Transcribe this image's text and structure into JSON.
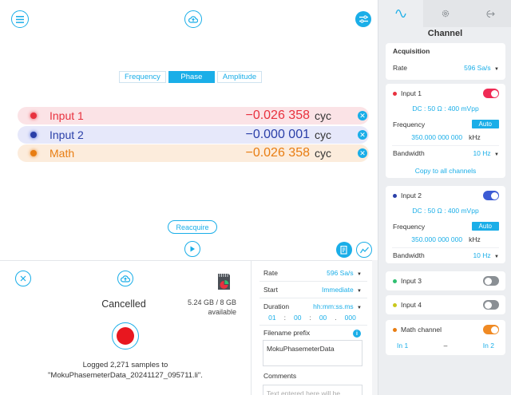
{
  "main": {
    "tabs": [
      {
        "label": "Frequency",
        "active": false
      },
      {
        "label": "Phase",
        "active": true
      },
      {
        "label": "Amplitude",
        "active": false
      }
    ],
    "measurements": [
      {
        "name": "Input 1",
        "value": "−0.026 358",
        "unit": "cyc",
        "color": "#e8313e",
        "bg": "#fbe3e6"
      },
      {
        "name": "Input 2",
        "value": "−0.000 001",
        "unit": "cyc",
        "color": "#2a3fa8",
        "bg": "#e6e8fa"
      },
      {
        "name": "Math",
        "value": "−0.026 358",
        "unit": "cyc",
        "color": "#e87d12",
        "bg": "#fcecdc"
      }
    ],
    "reacquire_label": "Reacquire",
    "accent": "#1aaee8"
  },
  "logger": {
    "status": "Cancelled",
    "storage_used": "5.24 GB / 8 GB",
    "storage_suffix": "available",
    "logged_line1": "Logged 2,271 samples to",
    "logged_line2": "\"MokuPhasemeterData_20241127_095711.li\"."
  },
  "log_settings": {
    "rate_label": "Rate",
    "rate_value": "596 Sa/s",
    "start_label": "Start",
    "start_value": "Immediate",
    "duration_label": "Duration",
    "duration_value": "hh:mm:ss.ms",
    "duration_fields": [
      "01",
      "00",
      "00",
      "000"
    ],
    "prefix_label": "Filename prefix",
    "prefix_value": "MokuPhasemeterData",
    "comments_label": "Comments",
    "comments_placeholder": "Text entered here will be"
  },
  "sidebar": {
    "title": "Channel",
    "acquisition": {
      "label": "Acquisition",
      "rate_label": "Rate",
      "rate_value": "596 Sa/s"
    },
    "input1": {
      "label": "Input 1",
      "color": "#e8313e",
      "toggle_color": "#ef2b55",
      "coupling": "DC : 50 Ω : 400 mVpp",
      "freq_label": "Frequency",
      "auto_label": "Auto",
      "freq_value": "350.000 000 000",
      "freq_unit": "kHz",
      "bw_label": "Bandwidth",
      "bw_value": "10 Hz",
      "copy_label": "Copy to all channels"
    },
    "input2": {
      "label": "Input 2",
      "color": "#2a3fa8",
      "toggle_color": "#3c5bd4",
      "coupling": "DC : 50 Ω : 400 mVpp",
      "freq_label": "Frequency",
      "auto_label": "Auto",
      "freq_value": "350.000 000 000",
      "freq_unit": "kHz",
      "bw_label": "Bandwidth",
      "bw_value": "10 Hz"
    },
    "input3": {
      "label": "Input 3",
      "color": "#2fbf71"
    },
    "input4": {
      "label": "Input 4",
      "color": "#c9c81c"
    },
    "math": {
      "label": "Math channel",
      "color": "#e87d12",
      "toggle_color": "#f08a23",
      "in_a": "In 1",
      "op": "–",
      "in_b": "In 2"
    }
  }
}
